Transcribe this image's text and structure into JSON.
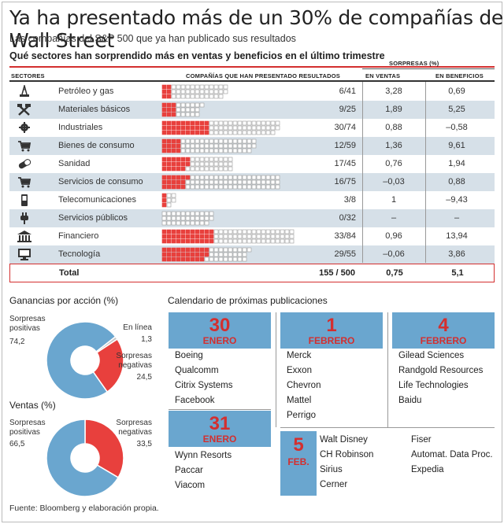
{
  "title": "Ya ha presentado más de un 30% de compañías de Wall Street",
  "subtitle": "Las compañías del S&P 500 que ya han publicado sus resultados",
  "section_title": "Qué sectores han sorprendido más en ventas y beneficios en el último trimestre",
  "colors": {
    "red": "#e8403d",
    "blue": "#6aa6cf",
    "shade": "#d6e0e8",
    "empty": "#ffffff"
  },
  "table": {
    "group_header": "SORPRESAS (%)",
    "headers": {
      "sector": "SECTORES",
      "companies": "COMPAÑÍAS QUE HAN PRESENTADO RESULTADOS",
      "sales": "EN VENTAS",
      "profit": "EN BENEFICIOS"
    },
    "total": {
      "label": "Total",
      "count": "155 / 500",
      "sales": "0,75",
      "profit": "5,1"
    }
  },
  "chart_data": [
    {
      "type": "table",
      "columns": [
        "Sector",
        "Presentadas",
        "Total",
        "Sorpresa ventas (%)",
        "Sorpresa beneficios (%)"
      ],
      "rows": [
        {
          "icon": "oil-well-icon",
          "sector": "Petróleo y gas",
          "presented": 6,
          "total": 41,
          "count_label": "6/41",
          "sales": "3,28",
          "profit": "0,69"
        },
        {
          "icon": "hammer-pick-icon",
          "sector": "Materiales básicos",
          "presented": 9,
          "total": 25,
          "count_label": "9/25",
          "sales": "1,89",
          "profit": "5,25"
        },
        {
          "icon": "gear-icon",
          "sector": "Industriales",
          "presented": 30,
          "total": 74,
          "count_label": "30/74",
          "sales": "0,88",
          "profit": "–0,58"
        },
        {
          "icon": "cart-icon",
          "sector": "Bienes de consumo",
          "presented": 12,
          "total": 59,
          "count_label": "12/59",
          "sales": "1,36",
          "profit": "9,61"
        },
        {
          "icon": "pill-icon",
          "sector": "Sanidad",
          "presented": 17,
          "total": 45,
          "count_label": "17/45",
          "sales": "0,76",
          "profit": "1,94"
        },
        {
          "icon": "cart-icon",
          "sector": "Servicios de consumo",
          "presented": 16,
          "total": 75,
          "count_label": "16/75",
          "sales": "–0,03",
          "profit": "0,88"
        },
        {
          "icon": "mobile-phone-icon",
          "sector": "Telecomunicaciones",
          "presented": 3,
          "total": 8,
          "count_label": "3/8",
          "sales": "1",
          "profit": "–9,43"
        },
        {
          "icon": "plug-icon",
          "sector": "Servicios públicos",
          "presented": 0,
          "total": 32,
          "count_label": "0/32",
          "sales": "–",
          "profit": "–"
        },
        {
          "icon": "bank-icon",
          "sector": "Financiero",
          "presented": 33,
          "total": 84,
          "count_label": "33/84",
          "sales": "0,96",
          "profit": "13,94"
        },
        {
          "icon": "monitor-icon",
          "sector": "Tecnología",
          "presented": 29,
          "total": 55,
          "count_label": "29/55",
          "sales": "–0,06",
          "profit": "3,86"
        }
      ]
    },
    {
      "type": "pie",
      "title": "Ganancias por acción (%)",
      "slices": [
        {
          "label": "Sorpresas positivas",
          "value": 74.2,
          "value_label": "74,2",
          "color": "#6aa6cf"
        },
        {
          "label": "Sorpresas negativas",
          "value": 24.5,
          "value_label": "24,5",
          "color": "#e8403d"
        },
        {
          "label": "En línea",
          "value": 1.3,
          "value_label": "1,3",
          "color": "#c8c8c8"
        }
      ]
    },
    {
      "type": "pie",
      "title": "Ventas (%)",
      "slices": [
        {
          "label": "Sorpresas positivas",
          "value": 66.5,
          "value_label": "66,5",
          "color": "#6aa6cf"
        },
        {
          "label": "Sorpresas negativas",
          "value": 33.5,
          "value_label": "33,5",
          "color": "#e8403d"
        }
      ]
    }
  ],
  "calendar": {
    "title": "Calendario de próximas publicaciones",
    "days": [
      {
        "day": "30",
        "month": "ENERO",
        "companies": [
          "Boeing",
          "Qualcomm",
          "Citrix Systems",
          "Facebook"
        ]
      },
      {
        "day": "1",
        "month": "FEBRERO",
        "companies": [
          "Merck",
          "Exxon",
          "Chevron",
          "Mattel",
          "Perrigo"
        ]
      },
      {
        "day": "4",
        "month": "FEBRERO",
        "companies": [
          "Gilead Sciences",
          "Randgold Resources",
          "Life Technologies",
          "Baidu"
        ]
      },
      {
        "day": "31",
        "month": "ENERO",
        "companies": [
          "Wynn Resorts",
          "Paccar",
          "Viacom"
        ]
      },
      {
        "day": "5",
        "month": "FEB.",
        "companies": [
          "Walt Disney",
          "CH Robinson",
          "Sirius",
          "Cerner",
          "Fiser",
          "Automat. Data Proc.",
          "Expedia"
        ]
      }
    ]
  },
  "source": "Fuente: Bloomberg y elaboración propia."
}
